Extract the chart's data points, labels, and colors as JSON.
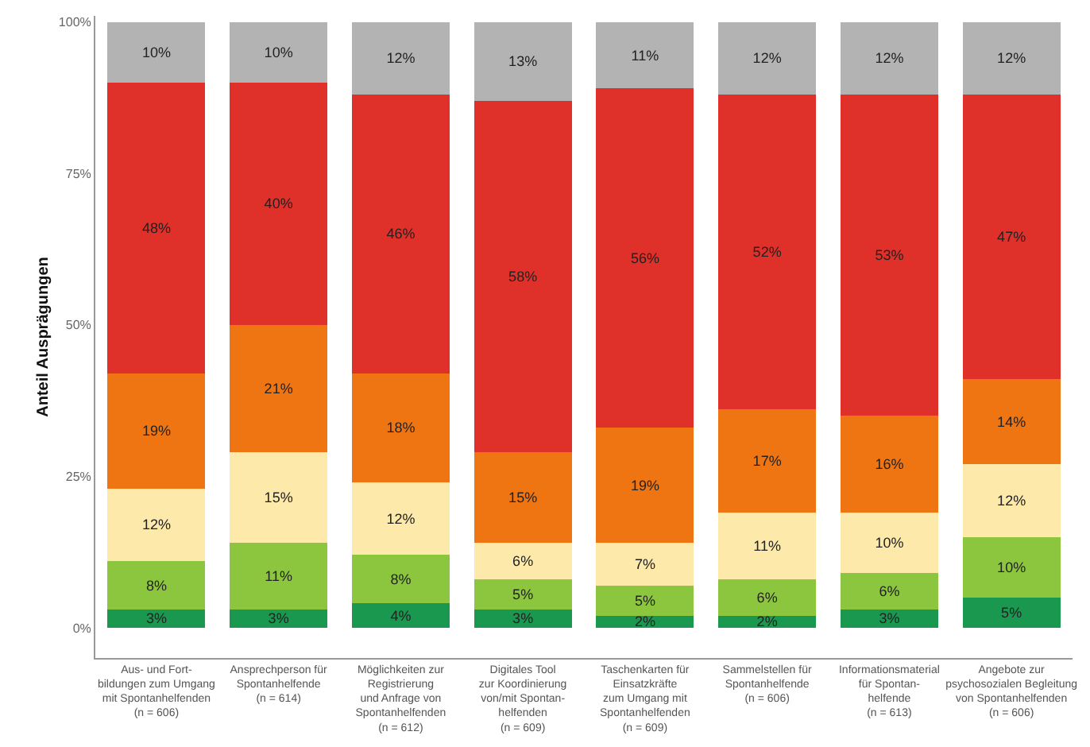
{
  "chart_data": {
    "type": "bar",
    "stacked": true,
    "ylabel": "Anteil Ausprägungen",
    "categories": [
      "Aus- und Fort-\nbildungen zum Umgang\nmit Spontanhelfenden\n(n = 606)",
      "Ansprechperson für\nSpontanhelfende\n(n = 614)",
      "Möglichkeiten zur\nRegistrierung\nund Anfrage von\nSpontanhelfenden\n(n = 612)",
      "Digitales Tool\nzur Koordinierung\nvon/mit Spontan-\nhelfenden\n(n = 609)",
      "Taschenkarten für\nEinsatzkräfte\nzum Umgang mit\nSpontanhelfenden\n(n = 609)",
      "Sammelstellen für\nSpontanhelfende\n(n = 606)",
      "Informationsmaterial\nfür Spontan-\nhelfende\n(n = 613)",
      "Angebote zur\npsychosozialen Begleitung\nvon Spontanhelfenden\n(n = 606)"
    ],
    "series": [
      {
        "color": "#1a9850",
        "values": [
          3,
          3,
          4,
          3,
          2,
          2,
          3,
          5
        ],
        "value_labels": [
          "3%",
          "3%",
          "4%",
          "3%",
          "2%",
          "2%",
          "3%",
          "5%"
        ]
      },
      {
        "color": "#8cc63f",
        "values": [
          8,
          11,
          8,
          5,
          5,
          6,
          6,
          10
        ],
        "value_labels": [
          "8%",
          "11%",
          "8%",
          "5%",
          "5%",
          "6%",
          "6%",
          "10%"
        ]
      },
      {
        "color": "#fde9aa",
        "values": [
          12,
          15,
          12,
          6,
          7,
          11,
          10,
          12
        ],
        "value_labels": [
          "12%",
          "15%",
          "12%",
          "6%",
          "7%",
          "11%",
          "10%",
          "12%"
        ]
      },
      {
        "color": "#ef7512",
        "values": [
          19,
          21,
          18,
          15,
          19,
          17,
          16,
          14
        ],
        "value_labels": [
          "19%",
          "21%",
          "18%",
          "15%",
          "19%",
          "17%",
          "16%",
          "14%"
        ]
      },
      {
        "color": "#e0302a",
        "values": [
          48,
          40,
          46,
          58,
          56,
          52,
          53,
          47
        ],
        "value_labels": [
          "48%",
          "40%",
          "46%",
          "58%",
          "56%",
          "52%",
          "53%",
          "47%"
        ]
      },
      {
        "color": "#b3b3b3",
        "values": [
          10,
          10,
          12,
          13,
          11,
          12,
          12,
          12
        ],
        "value_labels": [
          "10%",
          "10%",
          "12%",
          "13%",
          "11%",
          "12%",
          "12%",
          "12%"
        ]
      }
    ],
    "ylim": [
      -5,
      101
    ],
    "yticks": [
      {
        "value": 0,
        "label": "0%"
      },
      {
        "value": 25,
        "label": "25%"
      },
      {
        "value": 50,
        "label": "50%"
      },
      {
        "value": 75,
        "label": "75%"
      },
      {
        "value": 100,
        "label": "100%"
      }
    ],
    "grid": false
  }
}
